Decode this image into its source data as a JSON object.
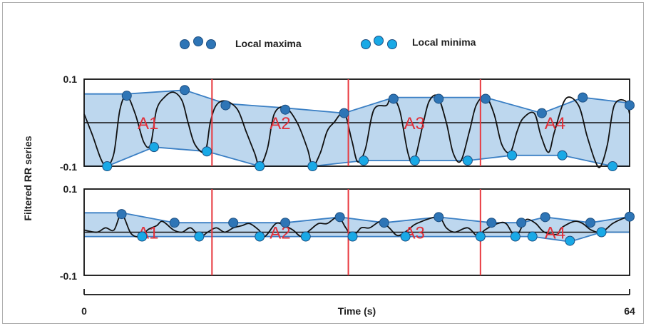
{
  "chart_data": {
    "type": "line",
    "legend": {
      "placement": "top-center",
      "items": [
        {
          "label": "Local maxima",
          "color": "#2e75b6"
        },
        {
          "label": "Local minima",
          "color": "#19a9e6"
        }
      ]
    },
    "ylabel": "Filtered RR series",
    "xlabel": "Time (s)",
    "xlim": [
      0,
      64
    ],
    "x_ticks": [
      "0",
      "64"
    ],
    "region_boundaries": [
      15,
      31,
      46.5
    ],
    "panels": [
      {
        "name": "top",
        "ylim": [
          -0.1,
          0.1
        ],
        "y_ticks": [
          "0.1",
          "-0.1"
        ],
        "region_labels": [
          "A1",
          "A2",
          "A3",
          "A4"
        ],
        "signal": [
          [
            0,
            0.02
          ],
          [
            1,
            -0.03
          ],
          [
            2,
            -0.085
          ],
          [
            2.7,
            -0.1
          ],
          [
            3.5,
            -0.07
          ],
          [
            4.2,
            0.03
          ],
          [
            5,
            0.062
          ],
          [
            6,
            0.02
          ],
          [
            7,
            -0.045
          ],
          [
            7.8,
            -0.05
          ],
          [
            8.5,
            0.03
          ],
          [
            9.5,
            0.06
          ],
          [
            10.5,
            0.07
          ],
          [
            11.5,
            0.05
          ],
          [
            12.2,
            0.0
          ],
          [
            13,
            -0.05
          ],
          [
            14.2,
            -0.066
          ],
          [
            14.8,
            0.0
          ],
          [
            15.5,
            0.04
          ],
          [
            16.6,
            0.05
          ],
          [
            18,
            0.03
          ],
          [
            19,
            -0.02
          ],
          [
            20,
            -0.07
          ],
          [
            20.6,
            -0.1
          ],
          [
            21.5,
            -0.06
          ],
          [
            22.3,
            0.02
          ],
          [
            23.6,
            0.035
          ],
          [
            25,
            0.0
          ],
          [
            26.2,
            -0.06
          ],
          [
            26.8,
            -0.1
          ],
          [
            27.7,
            -0.07
          ],
          [
            28.5,
            -0.02
          ],
          [
            29.3,
            0.0
          ],
          [
            30.5,
            0.022
          ],
          [
            31.4,
            -0.04
          ],
          [
            32.1,
            -0.09
          ],
          [
            33,
            -0.06
          ],
          [
            34,
            0.03
          ],
          [
            35.5,
            0.04
          ],
          [
            36,
            0.06
          ],
          [
            37,
            0.03
          ],
          [
            38,
            -0.07
          ],
          [
            38.7,
            -0.09
          ],
          [
            39.8,
            0.0
          ],
          [
            40.5,
            0.05
          ],
          [
            41.5,
            0.06
          ],
          [
            42.5,
            0.0
          ],
          [
            43.3,
            -0.07
          ],
          [
            44.2,
            -0.088
          ],
          [
            45.2,
            -0.02
          ],
          [
            46,
            0.04
          ],
          [
            47.1,
            0.06
          ],
          [
            48.1,
            0.02
          ],
          [
            49,
            -0.05
          ],
          [
            50,
            -0.068
          ],
          [
            50.8,
            -0.02
          ],
          [
            51.5,
            0.01
          ],
          [
            52.8,
            0.022
          ],
          [
            53.6,
            -0.03
          ],
          [
            54.5,
            -0.068
          ],
          [
            55.2,
            -0.02
          ],
          [
            56.5,
            0.055
          ],
          [
            58,
            0.04
          ],
          [
            59,
            -0.03
          ],
          [
            60,
            -0.09
          ],
          [
            60.6,
            -0.1
          ],
          [
            61.4,
            -0.05
          ],
          [
            62.2,
            0.04
          ],
          [
            63.5,
            0.05
          ],
          [
            64,
            0.02
          ]
        ],
        "maxima": [
          [
            5,
            0.062
          ],
          [
            11.8,
            0.075
          ],
          [
            16.6,
            0.04
          ],
          [
            23.6,
            0.03
          ],
          [
            30.5,
            0.022
          ],
          [
            36.3,
            0.055
          ],
          [
            41.6,
            0.055
          ],
          [
            47.1,
            0.055
          ],
          [
            53.7,
            0.022
          ],
          [
            58.5,
            0.058
          ],
          [
            64,
            0.04
          ]
        ],
        "minima": [
          [
            2.7,
            -0.1
          ],
          [
            8.2,
            -0.056
          ],
          [
            14.4,
            -0.066
          ],
          [
            20.6,
            -0.1
          ],
          [
            26.8,
            -0.1
          ],
          [
            32.8,
            -0.087
          ],
          [
            38.8,
            -0.087
          ],
          [
            45,
            -0.087
          ],
          [
            50.2,
            -0.075
          ],
          [
            56.1,
            -0.075
          ],
          [
            62,
            -0.1
          ]
        ],
        "upper_envelope": [
          [
            0,
            0.066
          ],
          [
            5,
            0.066
          ],
          [
            11.8,
            0.075
          ],
          [
            16.6,
            0.044
          ],
          [
            23.6,
            0.034
          ],
          [
            30.5,
            0.022
          ],
          [
            36.3,
            0.058
          ],
          [
            41.6,
            0.058
          ],
          [
            47.1,
            0.058
          ],
          [
            53.7,
            0.022
          ],
          [
            58.5,
            0.058
          ],
          [
            64,
            0.045
          ]
        ],
        "lower_envelope": [
          [
            0,
            -0.1
          ],
          [
            2.7,
            -0.1
          ],
          [
            8.2,
            -0.056
          ],
          [
            14.4,
            -0.066
          ],
          [
            20.6,
            -0.1
          ],
          [
            26.8,
            -0.1
          ],
          [
            32.8,
            -0.087
          ],
          [
            38.8,
            -0.087
          ],
          [
            45,
            -0.087
          ],
          [
            50.2,
            -0.075
          ],
          [
            56.1,
            -0.075
          ],
          [
            62,
            -0.1
          ],
          [
            64,
            -0.1
          ]
        ]
      },
      {
        "name": "bottom",
        "ylim": [
          -0.1,
          0.1
        ],
        "y_ticks": [
          "0.1",
          "-0.1"
        ],
        "region_labels": [
          "A1",
          "A2",
          "A3",
          "A4"
        ],
        "signal": [
          [
            0,
            0.005
          ],
          [
            1.5,
            0.0
          ],
          [
            2.5,
            0.01
          ],
          [
            3.5,
            0.005
          ],
          [
            4.4,
            0.042
          ],
          [
            5.5,
            -0.003
          ],
          [
            6.6,
            -0.01
          ],
          [
            7.5,
            0.006
          ],
          [
            8.5,
            0.015
          ],
          [
            9.2,
            0.025
          ],
          [
            10.5,
            0.005
          ],
          [
            11.5,
            0.0
          ],
          [
            12.5,
            0.01
          ],
          [
            13.6,
            -0.01
          ],
          [
            14.5,
            0.0
          ],
          [
            15.5,
            0.01
          ],
          [
            16.5,
            0.0
          ],
          [
            17.5,
            0.01
          ],
          [
            18.5,
            0.015
          ],
          [
            19.4,
            0.02
          ],
          [
            20.5,
            0.005
          ],
          [
            21.2,
            -0.01
          ],
          [
            22.5,
            0.02
          ],
          [
            23.5,
            0.015
          ],
          [
            24.5,
            0.005
          ],
          [
            25.5,
            -0.01
          ],
          [
            26.5,
            0.005
          ],
          [
            27.5,
            0.02
          ],
          [
            28.5,
            0.02
          ],
          [
            29.8,
            0.035
          ],
          [
            30.7,
            0.01
          ],
          [
            31.5,
            -0.01
          ],
          [
            32.5,
            0.01
          ],
          [
            33.5,
            0.01
          ],
          [
            34.8,
            0.025
          ],
          [
            35.8,
            0.01
          ],
          [
            36.8,
            -0.008
          ],
          [
            38,
            0.005
          ],
          [
            39,
            0.02
          ],
          [
            41.5,
            0.035
          ],
          [
            42.5,
            0.01
          ],
          [
            43.5,
            0.0
          ],
          [
            45,
            0.01
          ],
          [
            46.2,
            -0.01
          ],
          [
            47,
            0.005
          ],
          [
            48.5,
            0.02
          ],
          [
            49.5,
            0.02
          ],
          [
            50.6,
            -0.01
          ],
          [
            51.5,
            0.018
          ],
          [
            52,
            0.03
          ],
          [
            53,
            0.02
          ],
          [
            54,
            0.0
          ],
          [
            55.5,
            -0.005
          ],
          [
            56,
            0.01
          ],
          [
            57.5,
            0.025
          ],
          [
            58.5,
            0.02
          ],
          [
            59.5,
            0.005
          ],
          [
            60.7,
            0.0
          ],
          [
            62,
            0.02
          ],
          [
            63,
            0.03
          ],
          [
            64,
            0.036
          ]
        ],
        "maxima": [
          [
            4.4,
            0.042
          ],
          [
            10.6,
            0.022
          ],
          [
            17.5,
            0.022
          ],
          [
            23.6,
            0.022
          ],
          [
            30,
            0.035
          ],
          [
            35.2,
            0.022
          ],
          [
            41.6,
            0.035
          ],
          [
            47.8,
            0.022
          ],
          [
            51.3,
            0.022
          ],
          [
            54.1,
            0.035
          ],
          [
            59.4,
            0.022
          ],
          [
            64,
            0.036
          ]
        ],
        "minima": [
          [
            6.8,
            -0.01
          ],
          [
            13.5,
            -0.01
          ],
          [
            20.6,
            -0.01
          ],
          [
            26,
            -0.01
          ],
          [
            31.5,
            -0.01
          ],
          [
            37.7,
            -0.01
          ],
          [
            46.5,
            -0.01
          ],
          [
            50.6,
            -0.01
          ],
          [
            52.6,
            -0.01
          ],
          [
            57,
            -0.02
          ],
          [
            60.7,
            0.0
          ]
        ],
        "upper_envelope": [
          [
            0,
            0.045
          ],
          [
            4.4,
            0.045
          ],
          [
            10.6,
            0.022
          ],
          [
            17.5,
            0.022
          ],
          [
            23.6,
            0.022
          ],
          [
            30,
            0.035
          ],
          [
            35.2,
            0.022
          ],
          [
            41.6,
            0.035
          ],
          [
            47.8,
            0.022
          ],
          [
            51.3,
            0.022
          ],
          [
            54.1,
            0.035
          ],
          [
            59.4,
            0.022
          ],
          [
            64,
            0.036
          ]
        ],
        "lower_envelope": [
          [
            0,
            -0.01
          ],
          [
            6.8,
            -0.01
          ],
          [
            13.5,
            -0.01
          ],
          [
            20.6,
            -0.01
          ],
          [
            26,
            -0.01
          ],
          [
            31.5,
            -0.01
          ],
          [
            37.7,
            -0.01
          ],
          [
            46.5,
            -0.01
          ],
          [
            50.6,
            -0.01
          ],
          [
            52.6,
            -0.01
          ],
          [
            57,
            -0.022
          ],
          [
            60.7,
            0.0
          ],
          [
            64,
            0.0
          ]
        ]
      }
    ],
    "colors": {
      "signal": "#111111",
      "envelope_line": "#3a7fc4",
      "envelope_fill": "#bdd7ee",
      "boundary": "#e8393f",
      "region_label": "#e0303a",
      "maxima": "#2e75b6",
      "minima": "#19a9e6"
    }
  }
}
